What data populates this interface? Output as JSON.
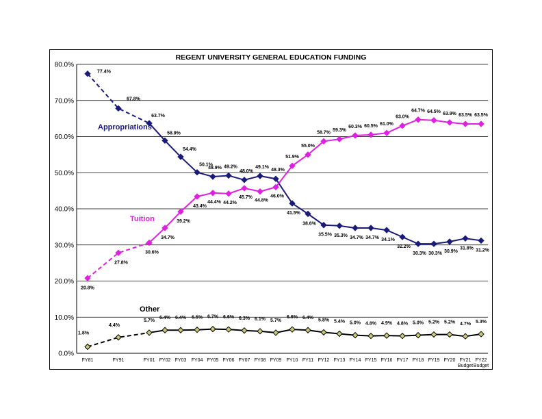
{
  "chart_data": {
    "type": "line",
    "title": "REGENT UNIVERSITY GENERAL EDUCATION FUNDING",
    "xlabel": "",
    "ylabel": "",
    "ylim": [
      0,
      80
    ],
    "y_ticks": [
      "0.0%",
      "10.0%",
      "20.0%",
      "30.0%",
      "40.0%",
      "50.0%",
      "60.0%",
      "70.0%",
      "80.0%"
    ],
    "categories": [
      "FY81",
      "FY91",
      "FY01",
      "FY02",
      "FY03",
      "FY04",
      "FY05",
      "FY06",
      "FY07",
      "FY08",
      "FY09",
      "FY10",
      "FY11",
      "FY12",
      "FY13",
      "FY14",
      "FY15",
      "FY16",
      "FY17",
      "FY18",
      "FY19",
      "FY20",
      "FY21",
      "FY22"
    ],
    "x_sublabels": [
      {
        "index": 22,
        "text": "Budget"
      },
      {
        "index": 23,
        "text": "Budget"
      }
    ],
    "grid": true,
    "series": [
      {
        "name": "Appropriations",
        "color": "#1a1a7a",
        "values": [
          77.4,
          67.8,
          63.7,
          58.9,
          54.4,
          50.1,
          48.9,
          49.2,
          48.0,
          49.1,
          48.3,
          41.5,
          38.6,
          35.5,
          35.3,
          34.7,
          34.7,
          34.1,
          32.2,
          30.3,
          30.3,
          30.9,
          31.8,
          31.2
        ],
        "labels": [
          "77.4%",
          "67.8%",
          "63.7%",
          "58.9%",
          "54.4%",
          "50.1%",
          "48.9%",
          "49.2%",
          "48.0%",
          "49.1%",
          "48.3%",
          "41.5%",
          "38.6%",
          "35.5%",
          "35.3%",
          "34.7%",
          "34.7%",
          "34.1%",
          "32.2%",
          "30.3%",
          "30.3%",
          "30.9%",
          "31.8%",
          "31.2%"
        ],
        "dashed_until_index": 2
      },
      {
        "name": "Tuition",
        "color": "#e020e0",
        "values": [
          20.8,
          27.8,
          30.6,
          34.7,
          39.2,
          43.4,
          44.4,
          44.2,
          45.7,
          44.8,
          46.0,
          51.9,
          55.0,
          58.7,
          59.3,
          60.3,
          60.5,
          61.0,
          63.0,
          64.7,
          64.5,
          63.9,
          63.5,
          63.5
        ],
        "labels": [
          "20.8%",
          "27.8%",
          "30.6%",
          "34.7%",
          "39.2%",
          "43.4%",
          "44.4%",
          "44.2%",
          "45.7%",
          "44.8%",
          "46.0%",
          "51.9%",
          "55.0%",
          "58.7%",
          "59.3%",
          "60.3%",
          "60.5%",
          "61.0%",
          "63.0%",
          "64.7%",
          "64.5%",
          "63.9%",
          "63.5%",
          "63.5%"
        ],
        "dashed_until_index": 2
      },
      {
        "name": "Other",
        "color": "#000000",
        "marker_fill": "#c8c878",
        "values": [
          1.8,
          4.4,
          5.7,
          6.4,
          6.4,
          6.5,
          6.7,
          6.6,
          6.3,
          6.1,
          5.7,
          6.6,
          6.4,
          5.8,
          5.4,
          5.0,
          4.8,
          4.9,
          4.8,
          5.0,
          5.2,
          5.2,
          4.7,
          5.3
        ],
        "labels": [
          "1.8%",
          "4.4%",
          "5.7%",
          "6.4%",
          "6.4%",
          "6.5%",
          "6.7%",
          "6.6%",
          "6.3%",
          "6.1%",
          "5.7%",
          "6.6%",
          "6.4%",
          "5.8%",
          "5.4%",
          "5.0%",
          "4.8%",
          "4.9%",
          "4.8%",
          "5.0%",
          "5.2%",
          "5.2%",
          "4.7%",
          "5.3%"
        ],
        "dashed_until_index": 2
      }
    ]
  }
}
